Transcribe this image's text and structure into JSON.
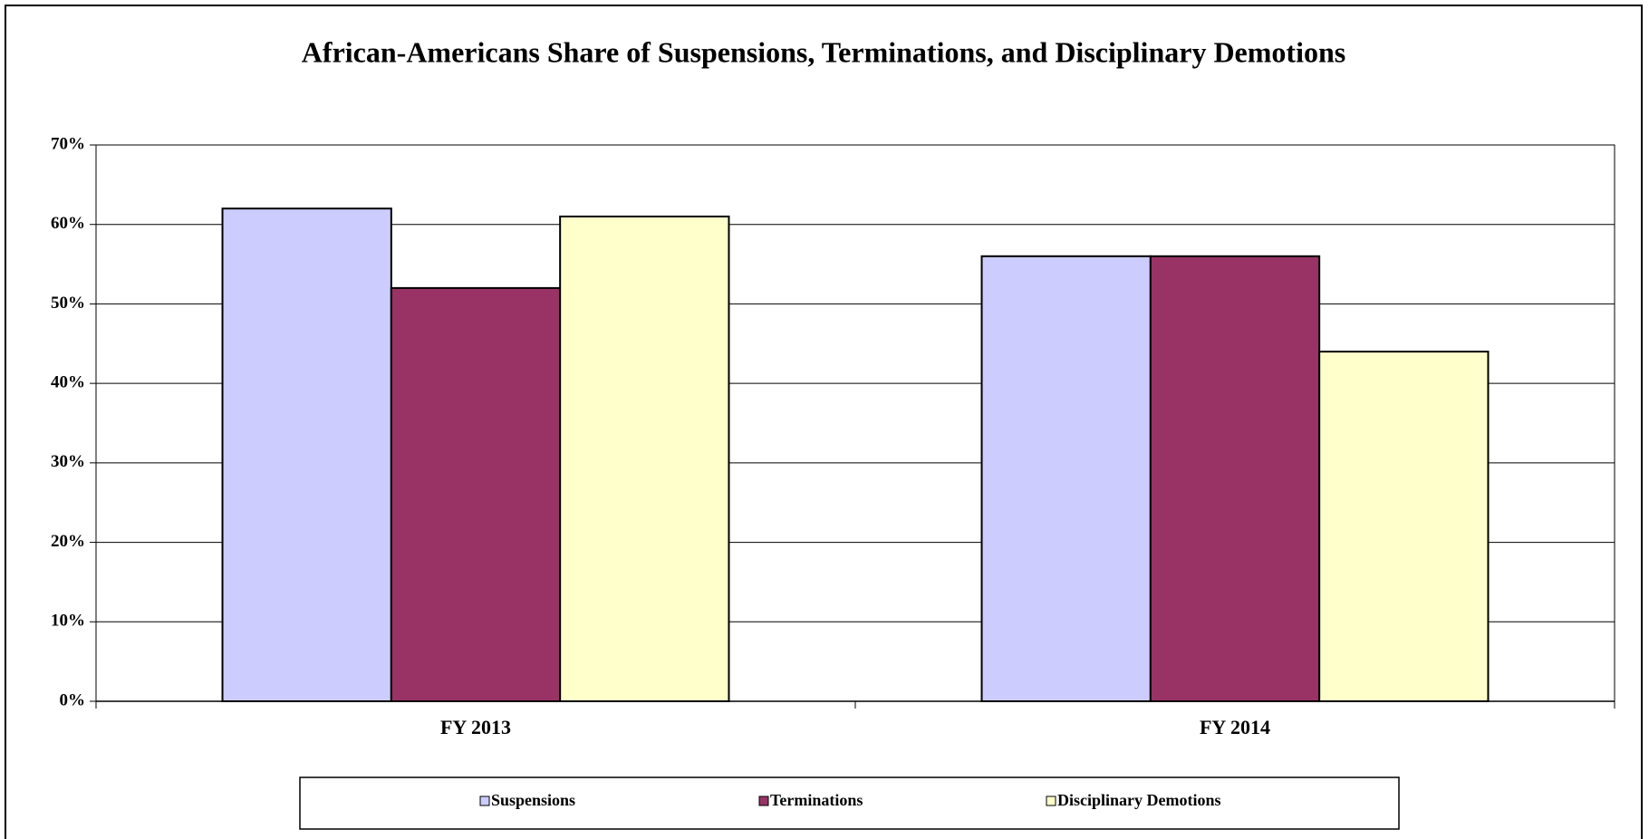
{
  "chart_data": {
    "type": "bar",
    "title": "African-Americans Share of Suspensions, Terminations, and Disciplinary Demotions",
    "categories": [
      "FY 2013",
      "FY 2014"
    ],
    "series": [
      {
        "name": "Suspensions",
        "color": "#ccccff",
        "values": [
          62,
          56
        ]
      },
      {
        "name": "Terminations",
        "color": "#993366",
        "values": [
          52,
          56
        ]
      },
      {
        "name": "Disciplinary Demotions",
        "color": "#ffffcc",
        "values": [
          61,
          44
        ]
      }
    ],
    "ylim": [
      0,
      70
    ],
    "yticks": [
      {
        "value": 0,
        "label": "0%"
      },
      {
        "value": 10,
        "label": "10%"
      },
      {
        "value": 20,
        "label": "20%"
      },
      {
        "value": 30,
        "label": "30%"
      },
      {
        "value": 40,
        "label": "40%"
      },
      {
        "value": 50,
        "label": "50%"
      },
      {
        "value": 60,
        "label": "60%"
      },
      {
        "value": 70,
        "label": "70%"
      }
    ],
    "grid": true,
    "legend": "bottom"
  }
}
